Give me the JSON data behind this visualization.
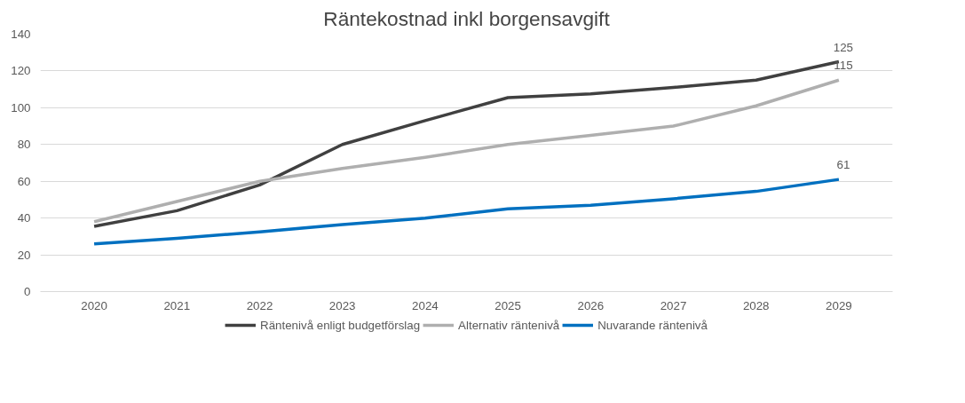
{
  "chart_data": {
    "type": "line",
    "title": "Räntekostnad inkl borgensavgift",
    "categories": [
      "2020",
      "2021",
      "2022",
      "2023",
      "2024",
      "2025",
      "2026",
      "2027",
      "2028",
      "2029"
    ],
    "series": [
      {
        "name": "Räntenivå enligt budgetförslag",
        "color": "#404040",
        "values": [
          35.5,
          44,
          58,
          80,
          93,
          105.5,
          107.5,
          111,
          115,
          125
        ],
        "value_labels": [
          null,
          null,
          null,
          null,
          null,
          null,
          null,
          null,
          null,
          "125"
        ]
      },
      {
        "name": "Alternativ räntenivå",
        "color": "#afafaf",
        "values": [
          38,
          49,
          60,
          67,
          73,
          80,
          85,
          90,
          101,
          115
        ],
        "value_labels": [
          null,
          null,
          null,
          null,
          null,
          null,
          null,
          null,
          null,
          "115"
        ]
      },
      {
        "name": "Nuvarande räntenivå",
        "color": "#0070c0",
        "values": [
          26,
          29,
          32.5,
          36.5,
          40,
          45,
          47,
          50.5,
          54.5,
          61
        ],
        "value_labels": [
          null,
          null,
          null,
          null,
          null,
          null,
          null,
          null,
          null,
          "61"
        ]
      }
    ],
    "ylim": [
      0,
      140
    ],
    "yticks": [
      0,
      20,
      40,
      60,
      80,
      100,
      120,
      140
    ],
    "grid": "y",
    "legend": "bottom",
    "marker": "none",
    "line_style": "solid"
  }
}
